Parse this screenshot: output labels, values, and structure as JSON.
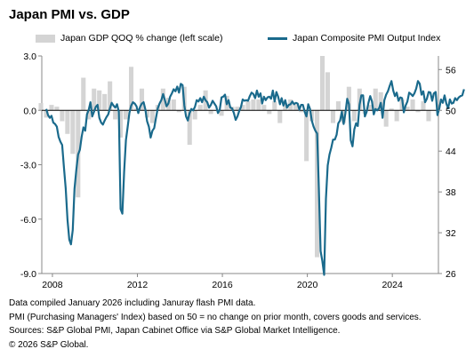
{
  "title": "Japan PMI vs. GDP",
  "legend": {
    "bar_label": "Japan GDP QOQ % change (left scale)",
    "line_label": "Japan Composite PMI Output Index"
  },
  "colors": {
    "bar": "#d4d4d4",
    "line": "#1a6a8c",
    "zero_line": "#000000",
    "axis": "#888888"
  },
  "notes": [
    "Data compiled January 2026 including Januray flash PMI data.",
    "PMI (Purchasing Managers' Index) based on 50 = no change on prior month, covers goods and services.",
    "Sources: S&P Global PMI, Japan Cabinet Office via S&P Global Market Intelligence.",
    "© 2026 S&P Global."
  ],
  "chart_data": {
    "type": "bar+line",
    "title": "Japan PMI vs. GDP",
    "legend_position": "top",
    "x_ticks": [
      "2008",
      "2012",
      "2016",
      "2020",
      "2024"
    ],
    "left_axis": {
      "ticks": [
        "3.0",
        "0.0",
        "-3.0",
        "-6.0",
        "-9.0"
      ],
      "range": [
        -9,
        3
      ]
    },
    "right_axis": {
      "ticks": [
        "56",
        "50",
        "44",
        "38",
        "32",
        "26"
      ],
      "range": [
        26,
        58
      ]
    },
    "series": [
      {
        "name": "Japan GDP QOQ % change (left scale)",
        "type": "bar",
        "axis": "left",
        "x": [
          "2007-06",
          "2007-09",
          "2007-12",
          "2008-03",
          "2008-06",
          "2008-09",
          "2008-12",
          "2009-03",
          "2009-06",
          "2009-09",
          "2009-12",
          "2010-03",
          "2010-06",
          "2010-09",
          "2010-12",
          "2011-03",
          "2011-06",
          "2011-09",
          "2011-12",
          "2012-03",
          "2012-06",
          "2012-09",
          "2012-12",
          "2013-03",
          "2013-06",
          "2013-09",
          "2013-12",
          "2014-03",
          "2014-06",
          "2014-09",
          "2014-12",
          "2015-03",
          "2015-06",
          "2015-09",
          "2015-12",
          "2016-03",
          "2016-06",
          "2016-09",
          "2016-12",
          "2017-03",
          "2017-06",
          "2017-09",
          "2017-12",
          "2018-03",
          "2018-06",
          "2018-09",
          "2018-12",
          "2019-03",
          "2019-06",
          "2019-09",
          "2019-12",
          "2020-03",
          "2020-06",
          "2020-09",
          "2020-12",
          "2021-03",
          "2021-06",
          "2021-09",
          "2021-12",
          "2022-03",
          "2022-06",
          "2022-09",
          "2022-12",
          "2023-03",
          "2023-06",
          "2023-09",
          "2023-12",
          "2024-03",
          "2024-06",
          "2024-09",
          "2024-12",
          "2025-03",
          "2025-06",
          "2025-09"
        ],
        "values": [
          0.4,
          -0.4,
          0.3,
          0.2,
          -0.6,
          -1.3,
          -2.4,
          -4.8,
          1.8,
          -0.5,
          1.2,
          1.1,
          0.9,
          1.6,
          -0.5,
          -1.5,
          -0.5,
          2.4,
          0.1,
          1.2,
          -0.4,
          -0.7,
          0.3,
          1.2,
          0.7,
          0.6,
          -0.1,
          1.3,
          -1.9,
          -0.5,
          0.3,
          1.1,
          -0.2,
          0.0,
          -0.3,
          0.8,
          0.2,
          0.2,
          0.3,
          0.5,
          0.6,
          0.6,
          0.3,
          -0.2,
          0.5,
          -0.7,
          0.4,
          0.6,
          0.3,
          -0.1,
          -2.8,
          -0.6,
          -8.1,
          3.0,
          2.1,
          -0.7,
          0.5,
          -0.7,
          1.3,
          -0.6,
          1.2,
          -0.2,
          0.3,
          1.2,
          1.0,
          -0.9,
          0.1,
          -0.6,
          0.6,
          0.2,
          0.6,
          -0.1,
          0.5,
          -0.6
        ]
      },
      {
        "name": "Japan Composite PMI Output Index",
        "type": "line",
        "axis": "right",
        "x_start": "2007-09",
        "frequency": "monthly",
        "values": [
          50.2,
          49.3,
          48.9,
          49.2,
          48.2,
          48.0,
          47.6,
          46.1,
          45.4,
          44.9,
          41.6,
          38.5,
          33.9,
          31.0,
          30.3,
          32.4,
          38.5,
          41.2,
          43.5,
          44.2,
          46.1,
          47.5,
          47.0,
          49.4,
          50.1,
          51.2,
          49.1,
          49.8,
          50.5,
          50.8,
          48.9,
          48.2,
          47.9,
          48.5,
          49.0,
          49.4,
          50.3,
          51.1,
          50.7,
          50.4,
          50.9,
          49.8,
          35.5,
          34.8,
          41.0,
          45.6,
          47.5,
          49.6,
          50.7,
          51.2,
          51.0,
          50.6,
          49.6,
          50.5,
          51.0,
          51.2,
          50.1,
          48.4,
          47.6,
          46.0,
          47.0,
          47.4,
          48.9,
          50.3,
          51.0,
          51.5,
          52.4,
          51.5,
          50.6,
          51.0,
          52.0,
          52.5,
          53.1,
          52.8,
          53.5,
          52.6,
          53.9,
          53.7,
          50.7,
          49.1,
          48.5,
          49.6,
          50.2,
          50.0,
          50.5,
          51.5,
          51.3,
          51.8,
          51.2,
          52.0,
          51.5,
          51.2,
          50.4,
          50.8,
          51.4,
          51.0,
          50.6,
          49.6,
          50.1,
          51.9,
          52.0,
          52.3,
          50.9,
          51.5,
          50.4,
          50.3,
          49.6,
          48.6,
          49.1,
          49.9,
          50.5,
          51.6,
          51.4,
          51.5,
          51.4,
          52.1,
          52.6,
          52.4,
          51.8,
          52.9,
          52.0,
          52.5,
          51.0,
          52.0,
          51.5,
          51.9,
          52.0,
          51.7,
          52.9,
          51.3,
          52.7,
          52.0,
          50.9,
          51.8,
          50.7,
          51.5,
          50.4,
          50.8,
          50.9,
          51.3,
          50.9,
          51.1,
          51.0,
          50.1,
          50.8,
          50.8,
          49.8,
          49.1,
          50.9,
          50.2,
          48.5,
          47.6,
          47.0,
          46.6,
          38.7,
          29.3,
          27.8,
          25.8,
          37.0,
          41.9,
          43.5,
          44.5,
          45.7,
          45.7,
          46.4,
          48.1,
          48.5,
          49.8,
          48.0,
          49.6,
          51.7,
          50.9,
          45.6,
          44.7,
          47.2,
          48.1,
          47.7,
          50.8,
          52.2,
          52.2,
          49.1,
          49.8,
          51.1,
          52.1,
          51.3,
          49.4,
          50.2,
          50.0,
          50.3,
          51.1,
          48.9,
          51.5,
          52.3,
          52.8,
          53.6,
          54.3,
          52.9,
          52.1,
          52.6,
          51.4,
          51.9,
          51.8,
          49.7,
          50.7,
          51.3,
          52.6,
          52.4,
          52.1,
          52.5,
          53.2,
          54.3,
          53.9,
          52.3,
          52.8,
          51.2,
          51.7,
          52.7,
          52.6,
          51.4,
          52.5,
          52.7,
          49.3,
          50.2,
          51.6,
          51.1,
          52.2,
          51.0,
          50.3,
          51.6,
          51.0,
          51.1,
          51.8,
          51.5,
          51.9,
          52.1,
          52.2,
          53.1
        ]
      }
    ]
  }
}
